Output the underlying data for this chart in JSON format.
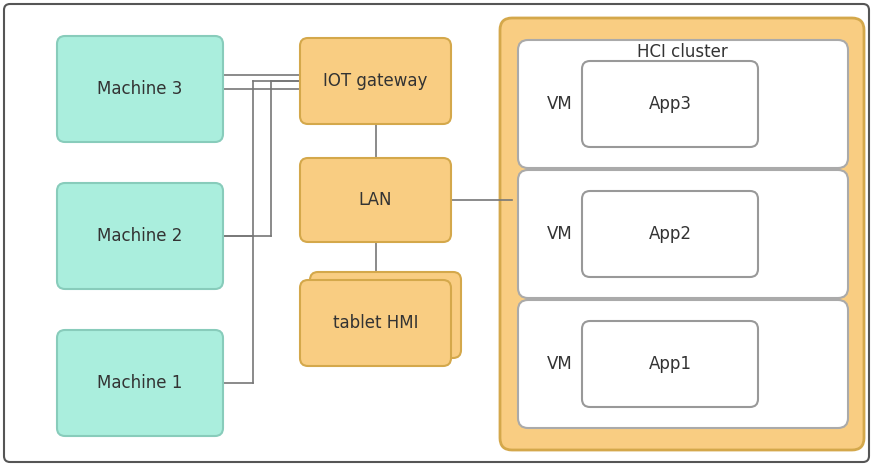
{
  "bg_color": "#ffffff",
  "outer_border_color": "#555555",
  "machine_color": "#aaeedd",
  "machine_border": "#88ccbb",
  "orange_color": "#f9cd82",
  "orange_border": "#d4a84b",
  "hci_fill": "#f9cd82",
  "hci_border": "#d4a84b",
  "vm_row_fill": "#ffffff",
  "vm_row_border": "#aaaaaa",
  "app_box_fill": "#ffffff",
  "app_box_border": "#999999",
  "line_color": "#777777",
  "machines": [
    "Machine 1",
    "Machine 2",
    "Machine 3"
  ],
  "tablet_hmi_label": "tablet HMI",
  "lan_label": "LAN",
  "iot_label": "IOT gateway",
  "app_labels": [
    "App1",
    "App2",
    "App3"
  ],
  "hci_label": "HCI cluster"
}
